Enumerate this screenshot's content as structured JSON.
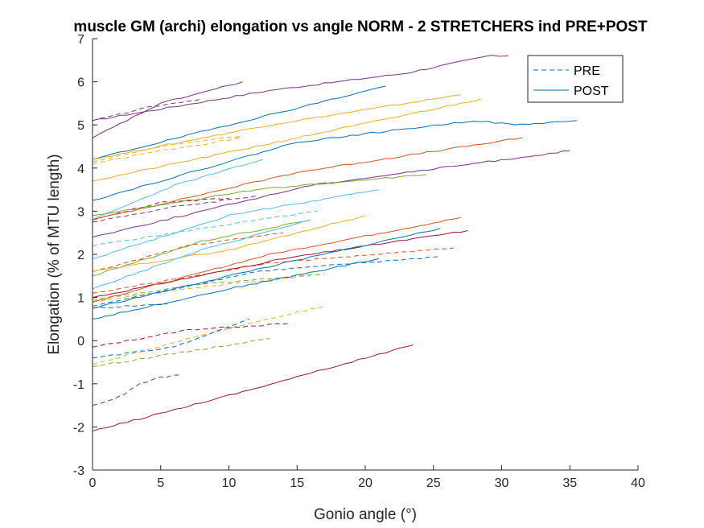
{
  "chart_data": {
    "type": "line",
    "title": "muscle GM (archi) elongation vs angle NORM - 2 STRETCHERS ind PRE+POST",
    "xlabel": "Gonio angle (°)",
    "ylabel": "Elongation (% of MTU length)",
    "xlim": [
      0,
      40
    ],
    "ylim": [
      -3,
      7
    ],
    "xticks": [
      "0",
      "5",
      "10",
      "15",
      "20",
      "25",
      "30",
      "35",
      "40"
    ],
    "yticks": [
      "-3",
      "-2",
      "-1",
      "0",
      "1",
      "2",
      "3",
      "4",
      "5",
      "6",
      "7"
    ],
    "grid": false,
    "legend": {
      "position": "top-right",
      "entries": [
        {
          "label": "PRE",
          "style": "dashed",
          "color": "#0072BD"
        },
        {
          "label": "POST",
          "style": "solid",
          "color": "#0072BD"
        }
      ]
    },
    "series": [
      {
        "name": "PRE",
        "style": "dashed",
        "color": "#7E2F8E",
        "x": [
          0,
          4,
          8
        ],
        "y": [
          5.1,
          5.4,
          5.6
        ]
      },
      {
        "name": "PRE",
        "style": "dashed",
        "color": "#EDB120",
        "x": [
          0,
          5,
          11
        ],
        "y": [
          4.1,
          4.4,
          4.7
        ]
      },
      {
        "name": "PRE",
        "style": "dashed",
        "color": "#EDB120",
        "x": [
          0,
          5,
          11
        ],
        "y": [
          4.15,
          4.5,
          4.75
        ]
      },
      {
        "name": "PRE",
        "style": "dashed",
        "color": "#A2142F",
        "x": [
          0,
          5,
          10
        ],
        "y": [
          2.8,
          3.2,
          3.3
        ]
      },
      {
        "name": "PRE",
        "style": "dashed",
        "color": "#7E2F8E",
        "x": [
          0,
          6,
          12
        ],
        "y": [
          2.75,
          3.1,
          3.35
        ]
      },
      {
        "name": "PRE",
        "style": "dashed",
        "color": "#4DBEEE",
        "x": [
          0,
          8,
          16.5
        ],
        "y": [
          2.2,
          2.6,
          3.0
        ]
      },
      {
        "name": "PRE",
        "style": "dashed",
        "color": "#D95319",
        "x": [
          0,
          7,
          14
        ],
        "y": [
          1.6,
          2.2,
          2.5
        ]
      },
      {
        "name": "PRE",
        "style": "dashed",
        "color": "#D95319",
        "x": [
          0,
          13,
          26.5
        ],
        "y": [
          1.1,
          1.8,
          2.15
        ]
      },
      {
        "name": "PRE",
        "style": "dashed",
        "color": "#0072BD",
        "x": [
          0,
          12,
          25.5
        ],
        "y": [
          0.8,
          1.6,
          1.95
        ]
      },
      {
        "name": "PRE",
        "style": "dashed",
        "color": "#77AC30",
        "x": [
          0,
          8,
          17
        ],
        "y": [
          0.95,
          1.3,
          1.55
        ]
      },
      {
        "name": "PRE",
        "style": "dashed",
        "color": "#EDB120",
        "x": [
          0,
          8,
          16
        ],
        "y": [
          0.9,
          1.25,
          1.5
        ]
      },
      {
        "name": "PRE",
        "style": "dashed",
        "color": "#0072BD",
        "x": [
          0,
          2.5,
          5.5
        ],
        "y": [
          0.75,
          0.8,
          0.85
        ]
      },
      {
        "name": "PRE",
        "style": "dashed",
        "color": "#EDB120",
        "x": [
          0,
          9,
          17
        ],
        "y": [
          -0.55,
          0.2,
          0.8
        ]
      },
      {
        "name": "PRE",
        "style": "dashed",
        "color": "#A2142F",
        "x": [
          0,
          7,
          14.5
        ],
        "y": [
          -0.15,
          0.25,
          0.4
        ]
      },
      {
        "name": "PRE",
        "style": "dashed",
        "color": "#0072BD",
        "x": [
          0,
          6,
          11.5
        ],
        "y": [
          -0.4,
          -0.15,
          0.5
        ]
      },
      {
        "name": "PRE",
        "style": "dashed",
        "color": "#77AC30",
        "x": [
          0,
          6,
          13
        ],
        "y": [
          -0.6,
          -0.3,
          0.05
        ]
      },
      {
        "name": "PRE",
        "style": "dashed",
        "color": "#7E2F8E",
        "x": [
          0,
          2,
          3.5,
          5,
          6.5
        ],
        "y": [
          -1.5,
          -1.3,
          -1.0,
          -0.85,
          -0.8
        ]
      },
      {
        "name": "POST",
        "style": "solid",
        "color": "#7E2F8E",
        "x": [
          0,
          13,
          23,
          29,
          30.5
        ],
        "y": [
          5.1,
          5.8,
          6.2,
          6.6,
          6.6
        ]
      },
      {
        "name": "POST",
        "style": "solid",
        "color": "#7E2F8E",
        "x": [
          0,
          5,
          11
        ],
        "y": [
          4.7,
          5.5,
          6.0
        ]
      },
      {
        "name": "POST",
        "style": "solid",
        "color": "#0072BD",
        "x": [
          0,
          10,
          21.5
        ],
        "y": [
          4.2,
          5.0,
          5.9
        ]
      },
      {
        "name": "POST",
        "style": "solid",
        "color": "#EDB120",
        "x": [
          0,
          13,
          27
        ],
        "y": [
          4.2,
          5.0,
          5.7
        ]
      },
      {
        "name": "POST",
        "style": "solid",
        "color": "#EDB120",
        "x": [
          0,
          15,
          28.5
        ],
        "y": [
          3.7,
          4.7,
          5.6
        ]
      },
      {
        "name": "POST",
        "style": "solid",
        "color": "#0072BD",
        "x": [
          0,
          15,
          28,
          31,
          35.5
        ],
        "y": [
          3.25,
          4.6,
          5.1,
          5.0,
          5.1
        ]
      },
      {
        "name": "POST",
        "style": "solid",
        "color": "#4DBEEE",
        "x": [
          0,
          6,
          12.5
        ],
        "y": [
          2.8,
          3.6,
          4.2
        ]
      },
      {
        "name": "POST",
        "style": "solid",
        "color": "#D95319",
        "x": [
          0,
          15,
          31.5
        ],
        "y": [
          2.8,
          3.9,
          4.7
        ]
      },
      {
        "name": "POST",
        "style": "solid",
        "color": "#7E2F8E",
        "x": [
          0,
          16,
          35
        ],
        "y": [
          2.4,
          3.6,
          4.4
        ]
      },
      {
        "name": "POST",
        "style": "solid",
        "color": "#77AC30",
        "x": [
          0,
          12,
          24.5
        ],
        "y": [
          2.9,
          3.5,
          3.85
        ]
      },
      {
        "name": "POST",
        "style": "solid",
        "color": "#4DBEEE",
        "x": [
          0,
          10,
          21
        ],
        "y": [
          1.9,
          2.9,
          3.5
        ]
      },
      {
        "name": "POST",
        "style": "solid",
        "color": "#77AC30",
        "x": [
          0,
          8,
          16
        ],
        "y": [
          1.5,
          2.3,
          2.8
        ]
      },
      {
        "name": "POST",
        "style": "solid",
        "color": "#EDB120",
        "x": [
          0,
          10,
          20
        ],
        "y": [
          1.6,
          2.1,
          2.9
        ]
      },
      {
        "name": "POST",
        "style": "solid",
        "color": "#4DBEEE",
        "x": [
          0,
          8,
          16
        ],
        "y": [
          1.2,
          2.1,
          2.8
        ]
      },
      {
        "name": "POST",
        "style": "solid",
        "color": "#A2142F",
        "x": [
          0,
          14,
          27.5
        ],
        "y": [
          1.0,
          1.9,
          2.55
        ]
      },
      {
        "name": "POST",
        "style": "solid",
        "color": "#D95319",
        "x": [
          0,
          13,
          27
        ],
        "y": [
          0.9,
          2.0,
          2.85
        ]
      },
      {
        "name": "POST",
        "style": "solid",
        "color": "#0072BD",
        "x": [
          0,
          12,
          25.5
        ],
        "y": [
          0.75,
          1.65,
          2.6
        ]
      },
      {
        "name": "POST",
        "style": "solid",
        "color": "#0072BD",
        "x": [
          0,
          10,
          21
        ],
        "y": [
          0.5,
          1.2,
          1.9
        ]
      },
      {
        "name": "POST",
        "style": "solid",
        "color": "#A2142F",
        "x": [
          0,
          12,
          23.5
        ],
        "y": [
          -2.1,
          -1.1,
          -0.1
        ]
      }
    ]
  }
}
